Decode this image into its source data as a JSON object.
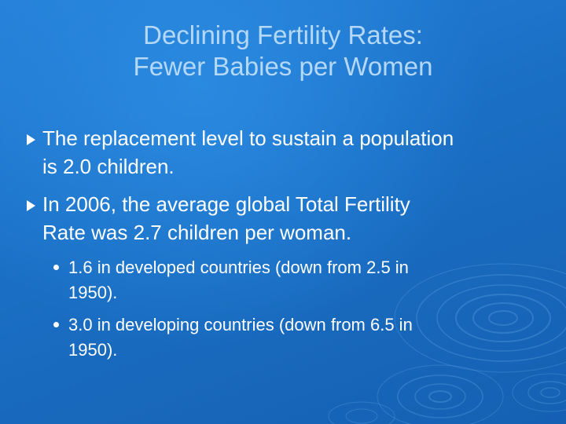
{
  "slide": {
    "title_lines": [
      "Declining Fertility Rates:",
      "Fewer Babies per Women"
    ],
    "bullets": [
      {
        "lines": [
          "The replacement level to sustain a population",
          "is 2.0 children."
        ]
      },
      {
        "lines": [
          "In 2006, the average global Total Fertility",
          "Rate was 2.7 children per woman."
        ]
      }
    ],
    "sub_bullets": [
      {
        "lines": [
          "1.6 in developed countries (down from 2.5 in",
          "1950)."
        ]
      },
      {
        "lines": [
          "3.0 in developing countries (down from 6.5 in",
          "1950)."
        ]
      }
    ]
  },
  "colors": {
    "background": "#1a6fc4",
    "title": "#b4d8f6",
    "body_text": "#ffffff"
  },
  "icons": {
    "bullet_marker": "arrowhead-bullet-icon",
    "sub_bullet_marker": "round-dot-icon",
    "background_decoration": "water-ripple-icon"
  }
}
